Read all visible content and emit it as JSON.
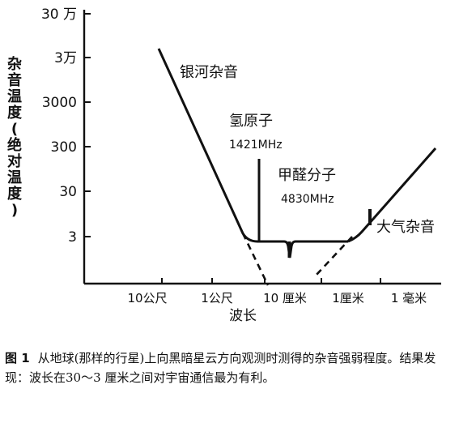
{
  "chart_data": {
    "type": "line",
    "xlabel": "波长",
    "ylabel": "杂音温度(绝对温度)",
    "x_ticks": [
      "10公尺",
      "1公尺",
      "10 厘米",
      "1厘米",
      "1 毫米"
    ],
    "y_ticks": [
      "30 万",
      "3万",
      "3000",
      "300",
      "30",
      "3"
    ],
    "log_scale": true,
    "grid": false,
    "series": [
      {
        "name": "银河杂音",
        "points": [
          {
            "x": 15,
            "y": 200000
          },
          {
            "x": 0.55,
            "y": 8
          },
          {
            "x": 0.2,
            "y": 3
          }
        ]
      },
      {
        "name": "大气杂音",
        "points": [
          {
            "x": 0.1,
            "y": 3
          },
          {
            "x": 0.005,
            "y": 8
          },
          {
            "x": 0.0007,
            "y": 350
          }
        ]
      }
    ],
    "extrapolations": [
      {
        "from": {
          "x": 0.3,
          "y": 3
        },
        "to": {
          "x": 0.11,
          "y": 0.3
        }
      },
      {
        "from": {
          "x": 0.0085,
          "y": 3
        },
        "to": {
          "x": 0.033,
          "y": 0.3
        }
      }
    ],
    "annotations": [
      {
        "label": "氢原子",
        "sublabel": "1421MHz",
        "x": 0.21,
        "y": 3,
        "peak_y": 45
      },
      {
        "label": "甲醛分子",
        "sublabel": "4830MHz",
        "x": 0.062,
        "y": 3,
        "dip_y": 1.6
      },
      {
        "label": "大气杂音",
        "x": 0.005
      }
    ]
  },
  "caption": {
    "figure_number": "图 1",
    "text": "从地球(那样的行星)上向黑暗星云方向观测时测得的杂音强弱程度。结果发现：波长在30～3 厘米之间对宇宙通信最为有利。"
  }
}
